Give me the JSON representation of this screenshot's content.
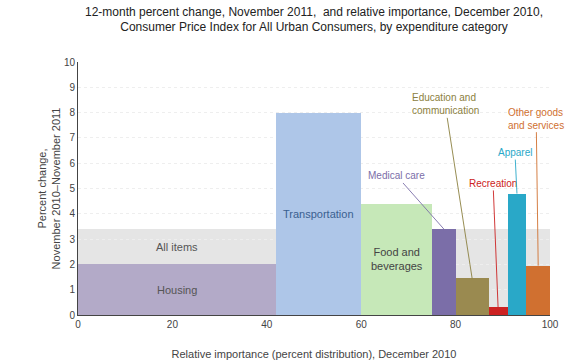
{
  "chart_data": {
    "type": "bar",
    "title": "12-month percent change, November 2011,  and relative importance, December 2010,\nConsumer Price Index for All Urban Consumers, by expenditure category",
    "xlabel": "Relative importance (percent distribution), December 2010",
    "ylabel": "Percent change,\nNovember 2010–November 2011",
    "categories": [
      "Housing",
      "Transportation",
      "Food and\nbeverages",
      "Medical care",
      "Education and\ncommunication",
      "Recreation",
      "Apparel",
      "Other goods\nand services"
    ],
    "x0": [
      0,
      42,
      60,
      75,
      80,
      87,
      91,
      95
    ],
    "x1": [
      42,
      60,
      75,
      80,
      87,
      91,
      95,
      100
    ],
    "values": [
      2.0,
      8.0,
      4.4,
      3.4,
      1.45,
      0.3,
      4.8,
      1.95
    ],
    "colors": [
      "#b3aac8",
      "#aec6e8",
      "#c6e8b8",
      "#7b6ea8",
      "#9a8a50",
      "#cc2222",
      "#29a8c8",
      "#d07030"
    ],
    "label_colors": [
      "#555555",
      "#3a6090",
      "#444444",
      "#7b6ea8",
      "#8b8040",
      "#cc2222",
      "#29a8c8",
      "#d07030"
    ],
    "reference_band": {
      "label": "All items",
      "value": 3.4,
      "color": "#d0d0d0",
      "label_color": "#555555"
    },
    "xlim": [
      0,
      100
    ],
    "xticks": [
      0,
      20,
      40,
      60,
      80,
      100
    ],
    "ylim": [
      0,
      10
    ],
    "yticks": [
      0,
      1,
      2,
      3,
      4,
      5,
      6,
      7,
      8,
      9,
      10
    ],
    "grid": true
  }
}
